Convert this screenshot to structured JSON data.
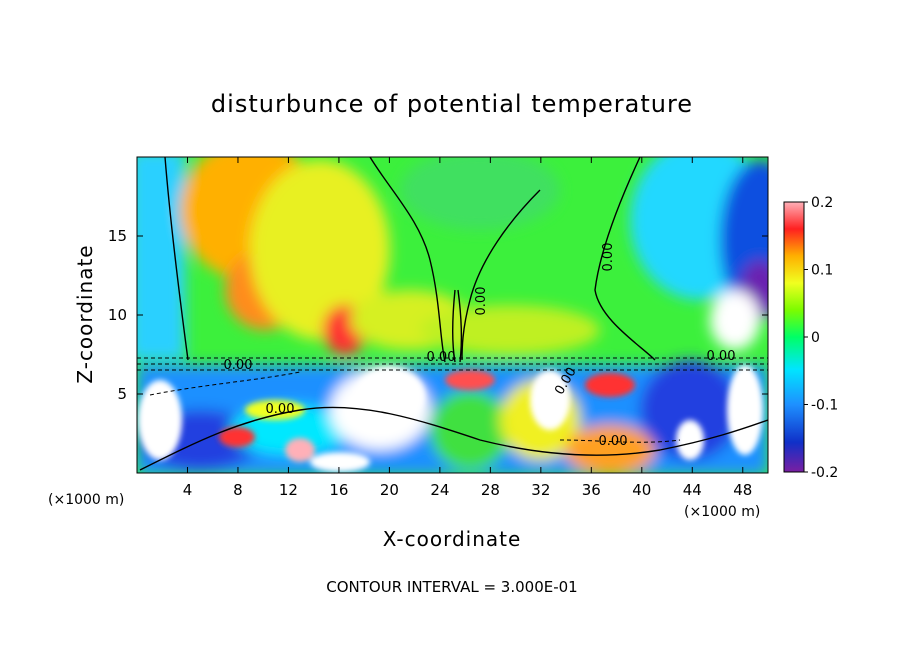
{
  "chart_data": {
    "type": "heatmap",
    "title": "disturbunce of potential temperature",
    "xlabel": "X-coordinate",
    "ylabel": "Z-coordinate",
    "x_unit": "(×1000 m)",
    "x_unit_right": "(×1000 m)",
    "xlim": [
      0,
      50
    ],
    "ylim": [
      0,
      20
    ],
    "x_ticks": [
      4,
      8,
      12,
      16,
      20,
      24,
      28,
      32,
      36,
      40,
      44,
      48
    ],
    "y_ticks": [
      5,
      10,
      15
    ],
    "colorbar": {
      "range": [
        -0.2,
        0.2
      ],
      "ticks": [
        "0.2",
        "0.1",
        "0",
        "-0.1",
        "-0.2"
      ],
      "tick_values": [
        0.2,
        0.1,
        0,
        -0.1,
        -0.2
      ],
      "stops": [
        "#7a1fa2",
        "#1030c8",
        "#1e90ff",
        "#00e5ff",
        "#00ff66",
        "#7cfc00",
        "#f0ff20",
        "#ffb000",
        "#ff2020",
        "#ffb0b8"
      ]
    },
    "contour_labels": [
      "0.00",
      "0.00",
      "0.00",
      "0.00",
      "0.00",
      "0.00",
      "0.00",
      "0.00"
    ],
    "footer": "CONTOUR INTERVAL = 3.000E-01",
    "grid": false,
    "legend": "right colorbar"
  }
}
